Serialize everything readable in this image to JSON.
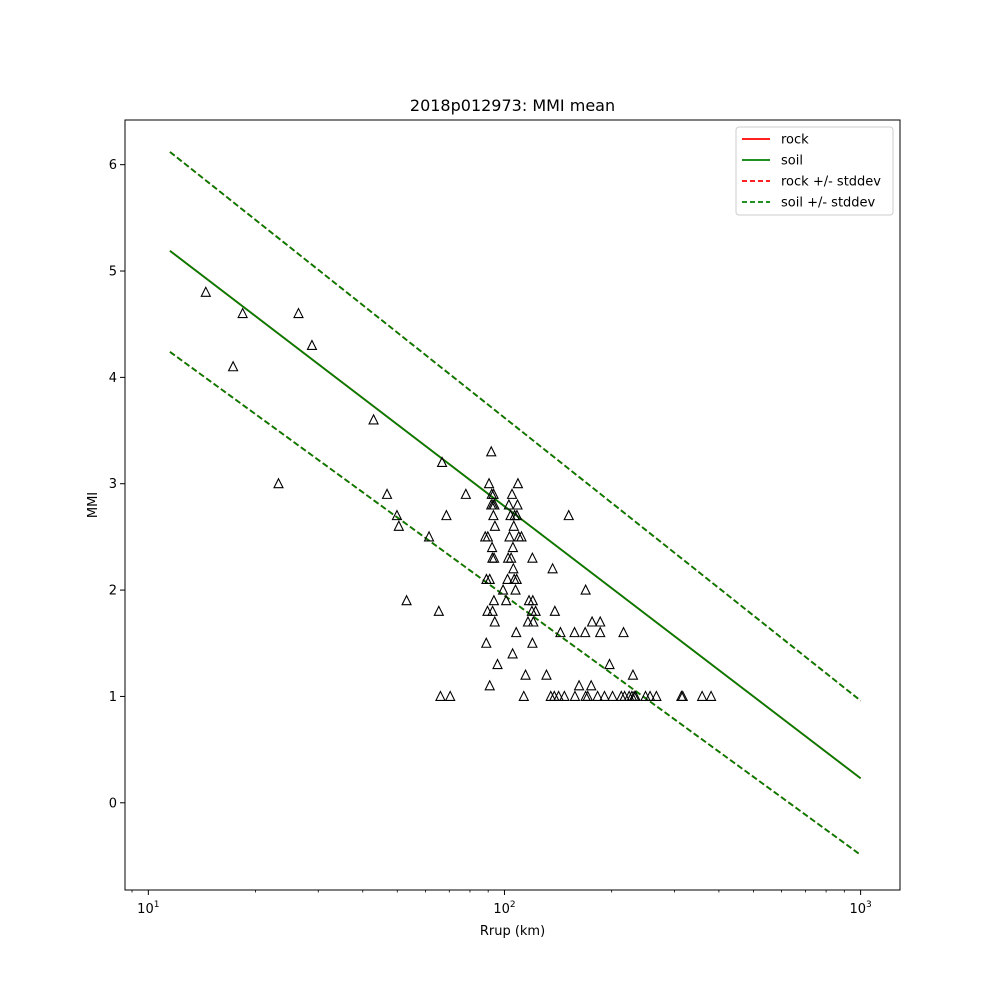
{
  "chart_data": {
    "type": "scatter",
    "title": "2018p012973: MMI mean",
    "xlabel": "Rrup (km)",
    "ylabel": "MMI",
    "xscale": "log",
    "xlim": [
      8.6,
      1290
    ],
    "ylim": [
      -0.82,
      6.42
    ],
    "x_ticks": [
      {
        "value": 10,
        "base": "10",
        "exp": "1"
      },
      {
        "value": 100,
        "base": "10",
        "exp": "2"
      },
      {
        "value": 1000,
        "base": "10",
        "exp": "3"
      }
    ],
    "y_ticks": [
      0,
      1,
      2,
      3,
      4,
      5,
      6
    ],
    "grid": false,
    "legend_position": "top-right",
    "colors": {
      "rock": "#ff0000",
      "soil": "#008000",
      "points": "#000000",
      "overlap": "#3a6a00"
    },
    "series": [
      {
        "name": "rock",
        "style": "solid",
        "color": "#ff0000",
        "x": [
          11.5,
          1000
        ],
        "y": [
          5.19,
          0.23
        ]
      },
      {
        "name": "soil",
        "style": "solid",
        "color": "#008000",
        "x": [
          11.5,
          1000
        ],
        "y": [
          5.19,
          0.23
        ]
      },
      {
        "name": "rock +/- stddev",
        "style": "dashed",
        "color": "#ff0000",
        "x": [
          11.5,
          1000
        ],
        "y_upper": [
          6.12,
          0.96
        ],
        "y_lower": [
          4.24,
          -0.49
        ]
      },
      {
        "name": "soil +/- stddev",
        "style": "dashed",
        "color": "#008000",
        "x": [
          11.5,
          1000
        ],
        "y_upper": [
          6.12,
          0.96
        ],
        "y_lower": [
          4.24,
          -0.49
        ]
      }
    ],
    "observations": {
      "marker": "triangle-open",
      "points": [
        [
          14.5,
          4.8
        ],
        [
          17.3,
          4.1
        ],
        [
          18.4,
          4.6
        ],
        [
          23.2,
          3.0
        ],
        [
          26.4,
          4.6
        ],
        [
          28.8,
          4.3
        ],
        [
          42.9,
          3.6
        ],
        [
          46.8,
          2.9
        ],
        [
          49.9,
          2.7
        ],
        [
          50.5,
          2.6
        ],
        [
          53.1,
          1.9
        ],
        [
          61.4,
          2.5
        ],
        [
          65.4,
          1.8
        ],
        [
          66.1,
          1.0
        ],
        [
          66.8,
          3.2
        ],
        [
          68.7,
          2.7
        ],
        [
          70.4,
          1.0
        ],
        [
          77.9,
          2.9
        ],
        [
          88.3,
          2.5
        ],
        [
          88.9,
          1.5
        ],
        [
          89.0,
          2.1
        ],
        [
          89.6,
          1.8
        ],
        [
          89.8,
          2.5
        ],
        [
          90.5,
          3.0
        ],
        [
          90.9,
          2.1
        ],
        [
          90.9,
          1.1
        ],
        [
          91.8,
          3.3
        ],
        [
          91.8,
          2.8
        ],
        [
          92.1,
          2.9
        ],
        [
          92.3,
          2.4
        ],
        [
          92.5,
          2.3
        ],
        [
          92.6,
          1.8
        ],
        [
          92.8,
          2.8
        ],
        [
          93.1,
          2.7
        ],
        [
          93.2,
          2.9
        ],
        [
          93.4,
          1.9
        ],
        [
          93.5,
          2.3
        ],
        [
          93.7,
          2.8
        ],
        [
          93.9,
          1.7
        ],
        [
          94.0,
          2.6
        ],
        [
          95.6,
          1.3
        ],
        [
          99.1,
          2.0
        ],
        [
          101.1,
          1.9
        ],
        [
          102.0,
          2.1
        ],
        [
          102.4,
          2.3
        ],
        [
          102.9,
          2.8
        ],
        [
          103.3,
          2.5
        ],
        [
          104.0,
          2.7
        ],
        [
          104.4,
          2.3
        ],
        [
          105.0,
          2.9
        ],
        [
          105.4,
          1.4
        ],
        [
          105.6,
          2.4
        ],
        [
          105.9,
          2.2
        ],
        [
          106.2,
          2.6
        ],
        [
          106.5,
          2.1
        ],
        [
          106.8,
          2.7
        ],
        [
          107.4,
          2.0
        ],
        [
          107.9,
          1.6
        ],
        [
          108.2,
          2.1
        ],
        [
          108.4,
          2.7
        ],
        [
          108.8,
          2.8
        ],
        [
          109.1,
          3.0
        ],
        [
          109.7,
          2.5
        ],
        [
          111.6,
          2.5
        ],
        [
          113.3,
          1.0
        ],
        [
          114.6,
          1.2
        ],
        [
          116.4,
          1.7
        ],
        [
          117.2,
          1.9
        ],
        [
          119.4,
          1.8
        ],
        [
          119.8,
          1.5
        ],
        [
          119.8,
          2.3
        ],
        [
          120.1,
          1.9
        ],
        [
          120.5,
          1.7
        ],
        [
          122.3,
          1.8
        ],
        [
          131.2,
          1.2
        ],
        [
          134.9,
          1.0
        ],
        [
          136.5,
          2.2
        ],
        [
          138.0,
          1.0
        ],
        [
          138.5,
          1.8
        ],
        [
          141.9,
          1.0
        ],
        [
          143.6,
          1.6
        ],
        [
          147.3,
          1.0
        ],
        [
          151.5,
          2.7
        ],
        [
          157.3,
          1.6
        ],
        [
          157.7,
          1.0
        ],
        [
          162.0,
          1.1
        ],
        [
          168.5,
          1.6
        ],
        [
          169.0,
          1.0
        ],
        [
          169.0,
          2.0
        ],
        [
          171.3,
          1.0
        ],
        [
          175.2,
          1.1
        ],
        [
          176.2,
          1.7
        ],
        [
          182.6,
          1.0
        ],
        [
          185.7,
          1.7
        ],
        [
          185.7,
          1.6
        ],
        [
          190.9,
          1.0
        ],
        [
          197.2,
          1.3
        ],
        [
          201.1,
          1.0
        ],
        [
          212.8,
          1.0
        ],
        [
          215.9,
          1.6
        ],
        [
          217.4,
          1.0
        ],
        [
          223.9,
          1.0
        ],
        [
          227.9,
          1.0
        ],
        [
          229.5,
          1.2
        ],
        [
          231.3,
          1.0
        ],
        [
          233.2,
          1.0
        ],
        [
          248.9,
          1.0
        ],
        [
          256.3,
          1.0
        ],
        [
          267.0,
          1.0
        ],
        [
          313.9,
          1.0
        ],
        [
          316.6,
          1.0
        ],
        [
          358.9,
          1.0
        ],
        [
          380.3,
          1.0
        ]
      ]
    }
  }
}
